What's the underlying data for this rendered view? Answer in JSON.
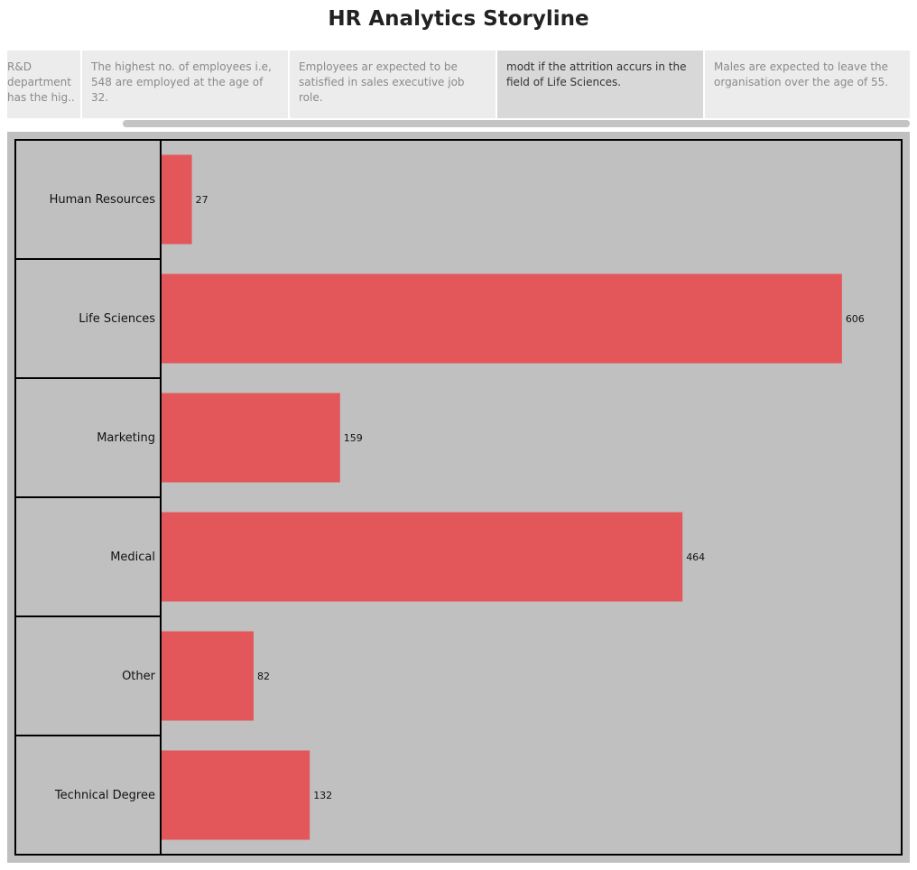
{
  "story": {
    "title": "HR  Analytics Storyline",
    "points": [
      {
        "text": "R&D department has the hig..",
        "active": false
      },
      {
        "text": "The highest no. of employees i.e, 548 are employed at the age of 32.",
        "active": false
      },
      {
        "text": "Employees ar expected to be satisfied in sales executive job role.",
        "active": false
      },
      {
        "text": "modt if the attrition accurs in the field of Life Sciences.",
        "active": true
      },
      {
        "text": "Males are expected to leave the organisation over the age  of 55.",
        "active": false
      }
    ]
  },
  "colors": {
    "bar": "#e3575a",
    "background": "#c0c0c0",
    "border": "#000000",
    "active_point": "#d8d8d8",
    "inactive_point": "#ececec"
  },
  "chart_data": {
    "type": "bar",
    "orientation": "horizontal",
    "categories": [
      "Human Resources",
      "Life Sciences",
      "Marketing",
      "Medical",
      "Other",
      "Technical Degree"
    ],
    "values": [
      27,
      606,
      159,
      464,
      82,
      132
    ],
    "value_labels": [
      "27",
      "606",
      "159",
      "464",
      "82",
      "132"
    ],
    "xlim": [
      0,
      660
    ],
    "grid": false,
    "title": "",
    "xlabel": "",
    "ylabel": ""
  }
}
